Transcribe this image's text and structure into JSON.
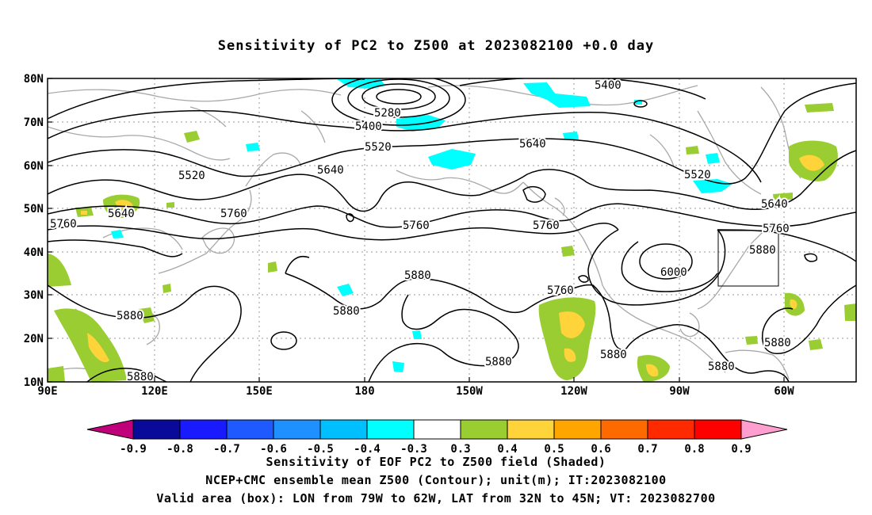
{
  "title": "Sensitivity of PC2 to Z500 at 2023082100 +0.0 day",
  "map": {
    "lat_labels": [
      "80N",
      "70N",
      "60N",
      "50N",
      "40N",
      "30N",
      "20N",
      "10N"
    ],
    "lon_labels": [
      "90E",
      "120E",
      "150E",
      "180",
      "150W",
      "120W",
      "90W",
      "60W"
    ],
    "contour_labels": [
      {
        "text": "5400"
      },
      {
        "text": "5280"
      },
      {
        "text": "5400"
      },
      {
        "text": "5520"
      },
      {
        "text": "5640"
      },
      {
        "text": "5640"
      },
      {
        "text": "5520"
      },
      {
        "text": "5520"
      },
      {
        "text": "5640"
      },
      {
        "text": "5760"
      },
      {
        "text": "5760"
      },
      {
        "text": "5760"
      },
      {
        "text": "5760"
      },
      {
        "text": "5640"
      },
      {
        "text": "5760"
      },
      {
        "text": "5880"
      },
      {
        "text": "6000"
      },
      {
        "text": "5880"
      },
      {
        "text": "5880"
      },
      {
        "text": "5880"
      },
      {
        "text": "5760"
      },
      {
        "text": "5880"
      },
      {
        "text": "5880"
      },
      {
        "text": "5880"
      },
      {
        "text": "5880"
      },
      {
        "text": "5880"
      }
    ],
    "valid_box": {
      "lon_min": "79W",
      "lon_max": "62W",
      "lat_min": "32N",
      "lat_max": "45N"
    }
  },
  "colorbar": {
    "labels": [
      "-0.9",
      "-0.8",
      "-0.7",
      "-0.6",
      "-0.5",
      "-0.4",
      "-0.3",
      "0.3",
      "0.4",
      "0.5",
      "0.6",
      "0.7",
      "0.8",
      "0.9"
    ],
    "colors": [
      "#0a0a9a",
      "#1a1aff",
      "#1e5aff",
      "#1e90ff",
      "#00bfff",
      "#00ffff",
      "#ffffff",
      "#9acd32",
      "#ffd43a",
      "#ffa500",
      "#ff6a00",
      "#ff2a00",
      "#ff0000"
    ],
    "low_end_color": "#c0007a",
    "high_end_color": "#ff9fd0"
  },
  "captions": {
    "line1": "Sensitivity of EOF PC2 to Z500 field (Shaded)",
    "line2": "NCEP+CMC ensemble mean Z500 (Contour); unit(m); IT:2023082100",
    "line3": "Valid area (box): LON from 79W to 62W, LAT from 32N to 45N; VT: 2023082700"
  }
}
